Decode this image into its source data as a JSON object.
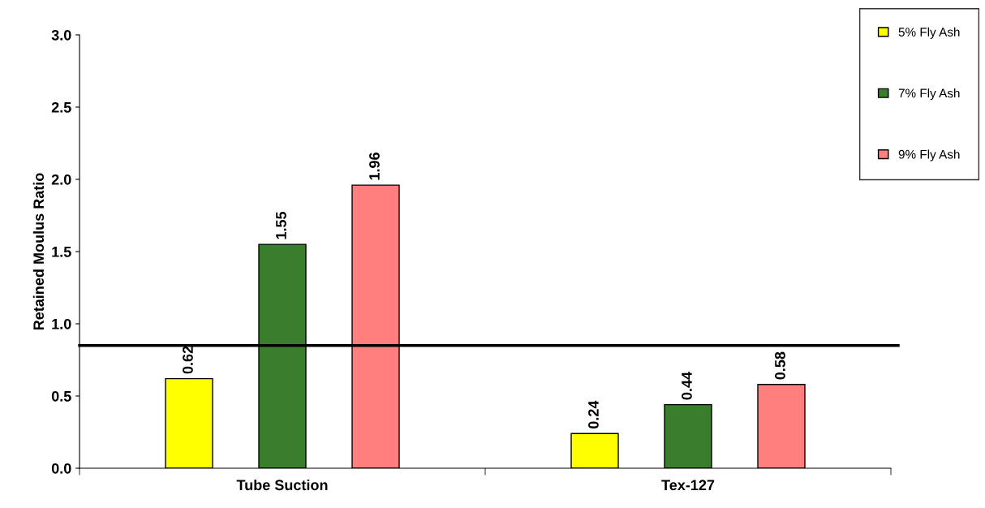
{
  "chart_data": {
    "type": "bar",
    "ylabel": "Retained Moulus Ratio",
    "categories": [
      "Tube Suction",
      "Tex-127"
    ],
    "series": [
      {
        "name": "5% Fly Ash",
        "color": "#ffff00",
        "values": [
          0.62,
          0.24
        ]
      },
      {
        "name": "7% Fly Ash",
        "color": "#3a7d2c",
        "values": [
          1.55,
          0.44
        ]
      },
      {
        "name": "9% Fly Ash",
        "color": "#ff7f7f",
        "values": [
          1.96,
          0.58
        ]
      }
    ],
    "ylim": [
      0,
      3
    ],
    "yticks": [
      {
        "value": 0,
        "label": "0.0"
      },
      0.5,
      {
        "value": 1,
        "label": "1.0"
      },
      1.5,
      {
        "value": 2,
        "label": "2.0"
      },
      2.5,
      {
        "value": 3,
        "label": "3.0"
      }
    ],
    "ref_lines": [
      {
        "axis": "y",
        "value": 0.85,
        "color": "#000000",
        "line_style": "solid"
      }
    ],
    "data_labels": true,
    "legend": "right",
    "grid": false
  }
}
